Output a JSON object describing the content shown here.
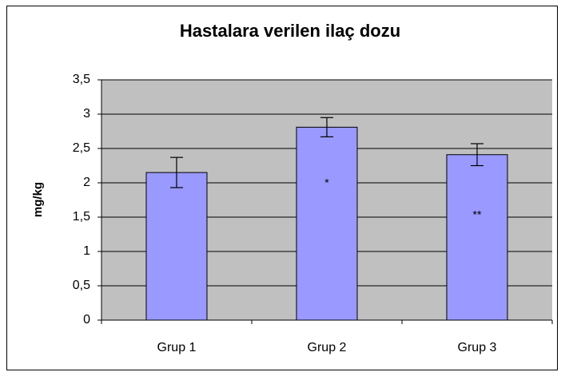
{
  "chart_data": {
    "type": "bar",
    "title": "Hastalara verilen ilaç dozu",
    "y_label": "mg/kg",
    "categories": [
      "Grup 1",
      "Grup 2",
      "Grup 3"
    ],
    "values": [
      2.15,
      2.81,
      2.41
    ],
    "errors": [
      0.22,
      0.14,
      0.16
    ],
    "annotations": [
      null,
      "*",
      "**"
    ],
    "color": "#9999ff",
    "ylim": [
      0,
      3.5
    ],
    "yticks": [
      0,
      {
        "value": 0.5,
        "label": "0,5"
      },
      1,
      {
        "value": 1.5,
        "label": "1,5"
      },
      2,
      {
        "value": 2.5,
        "label": "2,5"
      },
      3,
      {
        "value": 3.5,
        "label": "3,5"
      }
    ],
    "grid": true
  }
}
